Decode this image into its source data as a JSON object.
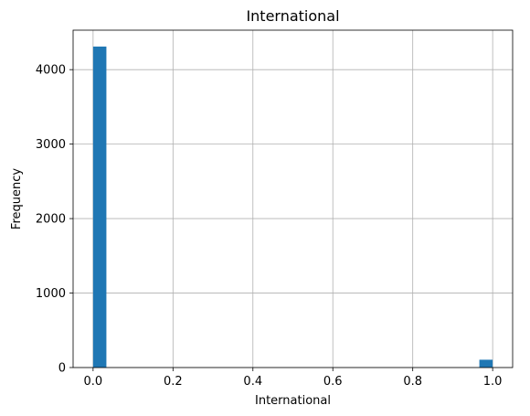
{
  "chart_data": {
    "type": "bar",
    "title": "International",
    "xlabel": "International",
    "ylabel": "Frequency",
    "xlim": [
      -0.05,
      1.05
    ],
    "ylim": [
      0,
      4530
    ],
    "grid": true,
    "bar_color": "#1f77b4",
    "bins": [
      {
        "x0": 0.0,
        "x1": 0.0333,
        "value": 4310
      },
      {
        "x0": 0.9667,
        "x1": 1.0,
        "value": 105
      }
    ],
    "xticks": [
      {
        "value": 0.0,
        "label": "0.0"
      },
      {
        "value": 0.2,
        "label": "0.2"
      },
      {
        "value": 0.4,
        "label": "0.4"
      },
      {
        "value": 0.6,
        "label": "0.6"
      },
      {
        "value": 0.8,
        "label": "0.8"
      },
      {
        "value": 1.0,
        "label": "1.0"
      }
    ],
    "yticks": [
      {
        "value": 0,
        "label": "0"
      },
      {
        "value": 1000,
        "label": "1000"
      },
      {
        "value": 2000,
        "label": "2000"
      },
      {
        "value": 3000,
        "label": "3000"
      },
      {
        "value": 4000,
        "label": "4000"
      }
    ]
  }
}
